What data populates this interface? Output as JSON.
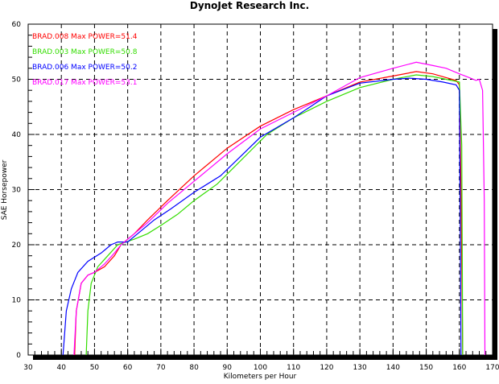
{
  "chart_data": {
    "type": "line",
    "title": "DynoJet Research Inc.",
    "xlabel": "Kilometers per Hour",
    "ylabel": "SAE Horsepower",
    "xlim": [
      30,
      170
    ],
    "ylim": [
      0,
      60
    ],
    "xticks": [
      30,
      40,
      50,
      60,
      70,
      80,
      90,
      100,
      110,
      120,
      130,
      140,
      150,
      160,
      170
    ],
    "yticks": [
      0,
      10,
      20,
      30,
      40,
      50,
      60
    ],
    "grid": true,
    "legend_position": "top-left",
    "series": [
      {
        "name": "BRAD.008",
        "label": "BRAD.008  Max POWER=51.4",
        "color": "#ff0000",
        "points": [
          [
            44,
            0
          ],
          [
            44.5,
            8
          ],
          [
            46,
            13
          ],
          [
            48,
            14.5
          ],
          [
            50,
            15
          ],
          [
            53,
            16
          ],
          [
            56,
            18
          ],
          [
            58,
            20
          ],
          [
            62,
            22
          ],
          [
            66,
            24.5
          ],
          [
            72,
            28
          ],
          [
            80,
            32.5
          ],
          [
            90,
            37.5
          ],
          [
            100,
            41.5
          ],
          [
            110,
            44.5
          ],
          [
            120,
            47
          ],
          [
            130,
            49.5
          ],
          [
            140,
            50.6
          ],
          [
            147,
            51.4
          ],
          [
            152,
            51
          ],
          [
            156,
            50.3
          ],
          [
            159,
            49.8
          ],
          [
            160,
            49
          ],
          [
            160.5,
            30
          ],
          [
            161,
            0
          ]
        ]
      },
      {
        "name": "BRAD.003",
        "label": "BRAD.003  Max POWER=50.8",
        "color": "#33dd00",
        "points": [
          [
            47.5,
            0
          ],
          [
            48,
            8
          ],
          [
            49,
            13
          ],
          [
            51,
            16
          ],
          [
            54,
            18
          ],
          [
            57,
            20
          ],
          [
            62,
            21
          ],
          [
            66,
            22
          ],
          [
            70,
            23.5
          ],
          [
            75,
            25.5
          ],
          [
            80,
            28
          ],
          [
            87,
            31
          ],
          [
            92,
            34
          ],
          [
            97,
            37
          ],
          [
            102,
            40
          ],
          [
            110,
            43
          ],
          [
            120,
            46
          ],
          [
            130,
            48.5
          ],
          [
            140,
            50
          ],
          [
            147,
            50.8
          ],
          [
            152,
            50.5
          ],
          [
            156,
            50
          ],
          [
            160,
            49.5
          ],
          [
            160.7,
            38
          ],
          [
            161,
            0
          ]
        ]
      },
      {
        "name": "BRAD.006",
        "label": "BRAD.006  Max POWER=50.2",
        "color": "#0000ff",
        "points": [
          [
            40.5,
            0
          ],
          [
            41.5,
            8
          ],
          [
            43,
            12
          ],
          [
            45,
            15
          ],
          [
            48,
            17
          ],
          [
            52,
            18.5
          ],
          [
            55,
            20
          ],
          [
            57,
            20.5
          ],
          [
            60,
            20.5
          ],
          [
            63,
            22
          ],
          [
            68,
            24.5
          ],
          [
            73,
            26.5
          ],
          [
            80,
            29.5
          ],
          [
            88,
            32.5
          ],
          [
            94,
            36
          ],
          [
            100,
            39.5
          ],
          [
            110,
            43
          ],
          [
            120,
            47
          ],
          [
            130,
            49.3
          ],
          [
            140,
            50
          ],
          [
            145,
            50.2
          ],
          [
            150,
            50
          ],
          [
            155,
            49.5
          ],
          [
            159,
            49
          ],
          [
            160,
            48
          ],
          [
            160.3,
            20
          ],
          [
            160.5,
            0
          ]
        ]
      },
      {
        "name": "BRAD.017",
        "label": "BRAD.017  Max POWER=53.1",
        "color": "#ff00ff",
        "points": [
          [
            43.8,
            0
          ],
          [
            44.5,
            8
          ],
          [
            46,
            13
          ],
          [
            48,
            14.5
          ],
          [
            50,
            15
          ],
          [
            53,
            16.5
          ],
          [
            56,
            18.5
          ],
          [
            58,
            20
          ],
          [
            62,
            22
          ],
          [
            66,
            24
          ],
          [
            72,
            27.5
          ],
          [
            80,
            31.5
          ],
          [
            90,
            36.5
          ],
          [
            100,
            41
          ],
          [
            110,
            44
          ],
          [
            120,
            47
          ],
          [
            130,
            50.3
          ],
          [
            140,
            52
          ],
          [
            147,
            53.1
          ],
          [
            152,
            52.5
          ],
          [
            156,
            52
          ],
          [
            160,
            51
          ],
          [
            163,
            50.3
          ],
          [
            165,
            49.8
          ],
          [
            166,
            50
          ],
          [
            167,
            48
          ],
          [
            167.5,
            28
          ],
          [
            167.7,
            0
          ]
        ]
      }
    ]
  }
}
